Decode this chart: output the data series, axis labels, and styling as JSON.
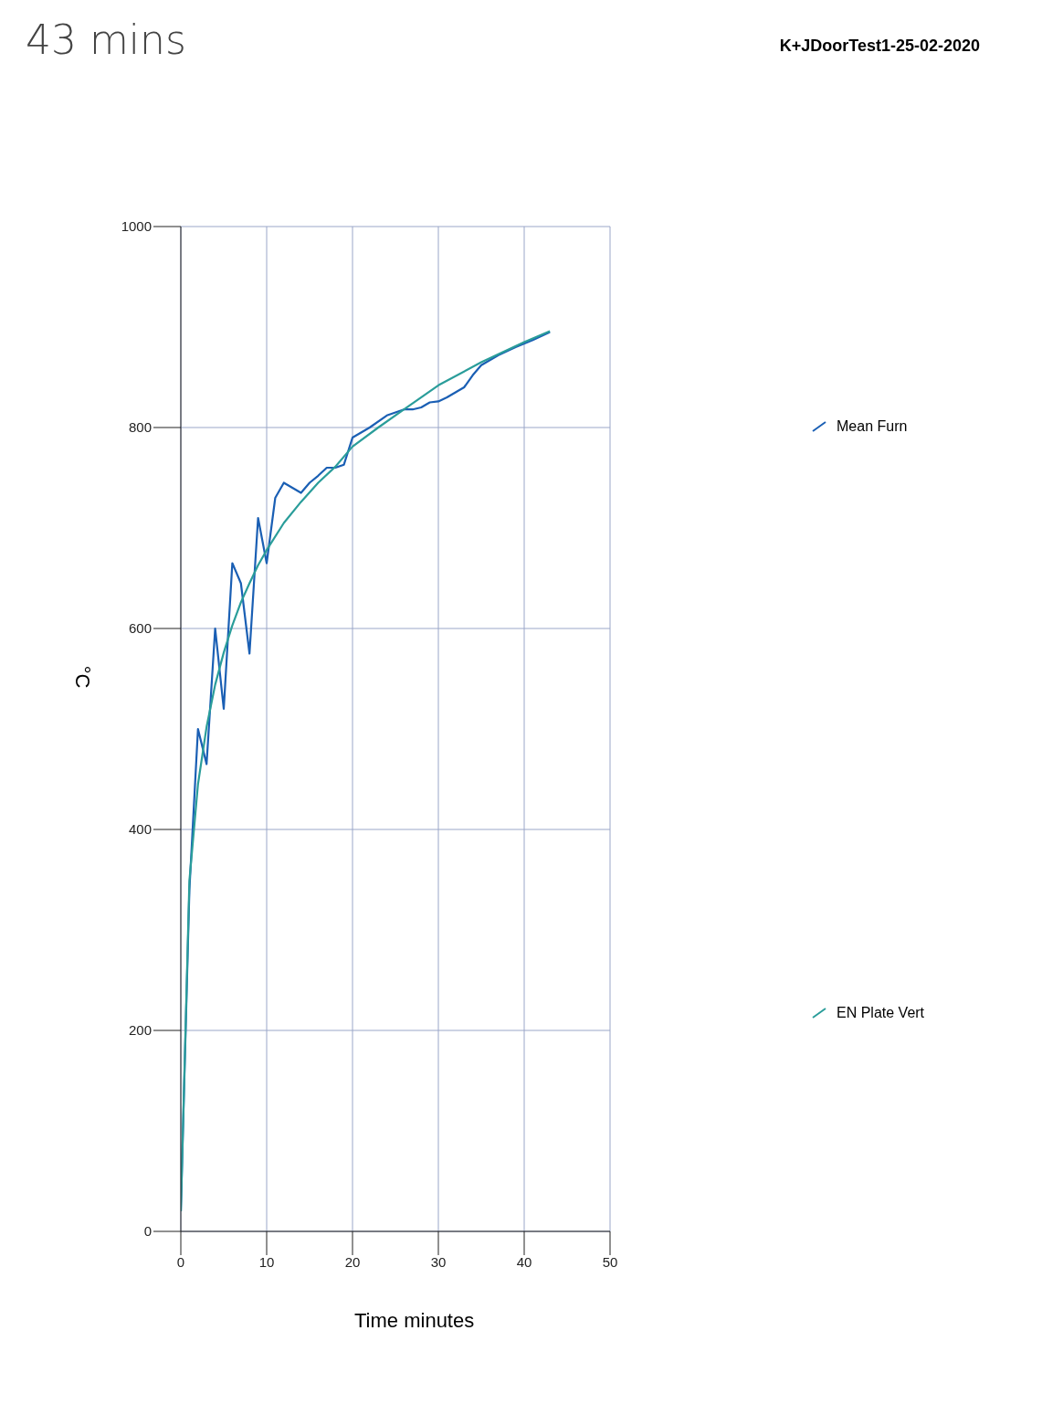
{
  "chart_data": {
    "type": "line",
    "title": "K+JDoorTest1-25-02-2020",
    "annotations": [
      "43 mins"
    ],
    "xlabel": "Time minutes",
    "ylabel": "°C",
    "xlim": [
      0,
      50
    ],
    "xticks": [
      0,
      10,
      20,
      30,
      40,
      50
    ],
    "ylim": [
      0,
      1000
    ],
    "yticks": [
      0,
      200,
      400,
      600,
      800,
      1000
    ],
    "grid": true,
    "legend": "right",
    "marker": "none",
    "line_style": "solid",
    "series": [
      {
        "name": "Mean Furn",
        "color": "#1a5fb4",
        "x": [
          0,
          1,
          2,
          3,
          4,
          5,
          6,
          7,
          8,
          9,
          10,
          11,
          12,
          14,
          15,
          16,
          17,
          18,
          19,
          20,
          22,
          24,
          26,
          27,
          28,
          29,
          30,
          31,
          32,
          33,
          34,
          35,
          37,
          39,
          41,
          43
        ],
        "values": [
          20,
          340,
          500,
          465,
          600,
          520,
          665,
          645,
          575,
          710,
          665,
          730,
          745,
          735,
          745,
          752,
          760,
          760,
          763,
          790,
          800,
          812,
          818,
          818,
          820,
          825,
          826,
          830,
          835,
          840,
          852,
          862,
          872,
          880,
          887,
          895
        ]
      },
      {
        "name": "EN Plate Vert",
        "color": "#2a9d9a",
        "x": [
          0,
          1,
          2,
          3,
          4,
          5,
          6,
          7,
          8,
          9,
          10,
          12,
          14,
          16,
          18,
          20,
          23,
          26,
          30,
          35,
          40,
          43
        ],
        "values": [
          20,
          349,
          445,
          502,
          544,
          576,
          603,
          626,
          645,
          663,
          678,
          705,
          726,
          745,
          761,
          781,
          800,
          818,
          842,
          865,
          885,
          896
        ]
      }
    ]
  }
}
